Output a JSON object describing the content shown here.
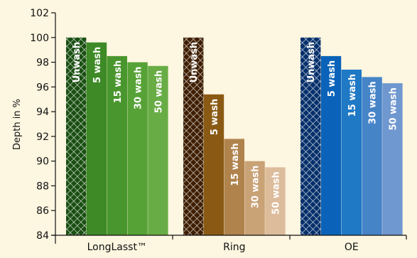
{
  "chart_data": {
    "type": "bar",
    "ylabel": "Depth in %",
    "ylim": [
      84,
      102
    ],
    "yticks": [
      84,
      86,
      88,
      90,
      92,
      94,
      96,
      98,
      100,
      102
    ],
    "grid": false,
    "legend": "none",
    "groups": [
      {
        "category": "LongLasst™",
        "bars": [
          {
            "label": "Unwash",
            "value": 100.0
          },
          {
            "label": "5 wash",
            "value": 99.6
          },
          {
            "label": "15 wash",
            "value": 98.5
          },
          {
            "label": "30 wash",
            "value": 98.0
          },
          {
            "label": "50 wash",
            "value": 97.7
          }
        ]
      },
      {
        "category": "Ring",
        "bars": [
          {
            "label": "Unwash",
            "value": 100.0
          },
          {
            "label": "5 wash",
            "value": 95.4
          },
          {
            "label": "15 wash",
            "value": 91.8
          },
          {
            "label": "30 wash",
            "value": 90.0
          },
          {
            "label": "50 wash",
            "value": 89.5
          }
        ]
      },
      {
        "category": "OE",
        "bars": [
          {
            "label": "Unwash",
            "value": 100.0
          },
          {
            "label": "5 wash",
            "value": 98.5
          },
          {
            "label": "15 wash",
            "value": 97.4
          },
          {
            "label": "30 wash",
            "value": 96.8
          },
          {
            "label": "50 wash",
            "value": 96.3
          }
        ]
      }
    ],
    "colors": {
      "background": "#fdf6e0",
      "LongLasst™": [
        "#2f7f1e",
        "#3d8a26",
        "#4a962e",
        "#56a236",
        "#68ac45"
      ],
      "Ring": [
        "#7a4a0a",
        "#8a5a14",
        "#b0834d",
        "#c9a276",
        "#dcbc9b"
      ],
      "OE": [
        "#0a4fa0",
        "#0a63b8",
        "#1f79c5",
        "#4684c8",
        "#6f97d0"
      ],
      "unwash_hatch": [
        "#1a4f12",
        "#3f1e02",
        "#06306b"
      ]
    }
  }
}
